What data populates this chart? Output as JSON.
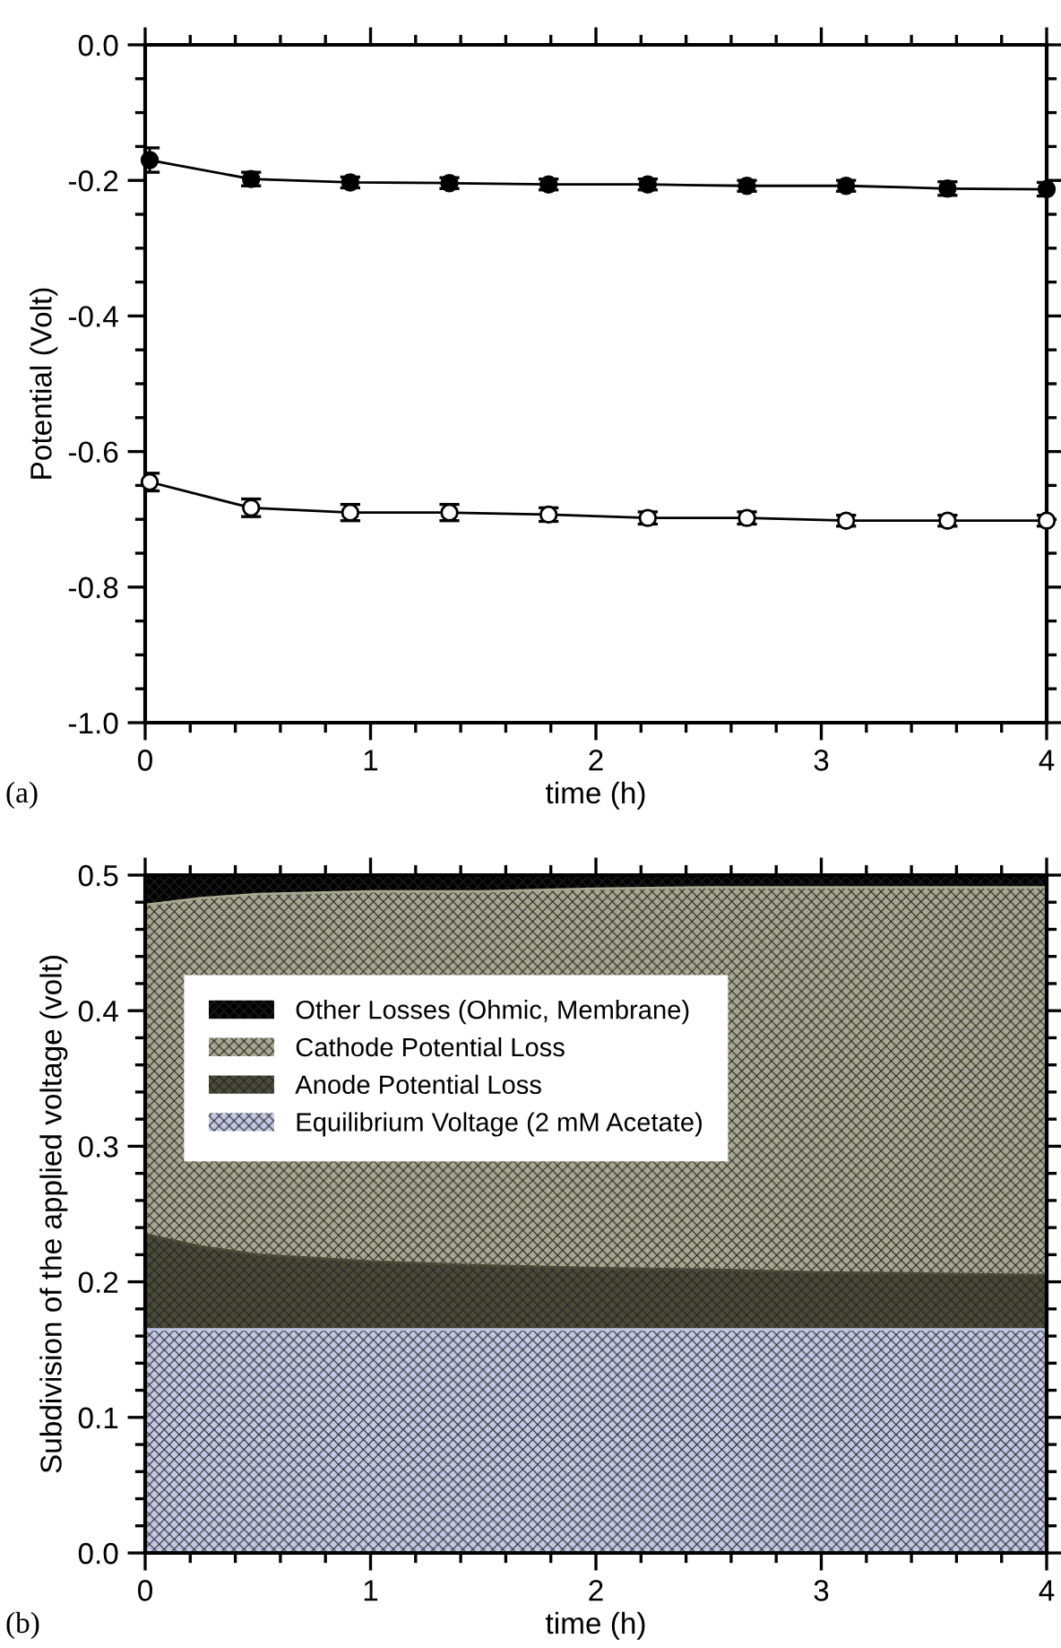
{
  "chart_data": [
    {
      "type": "line",
      "xlabel": "time (h)",
      "ylabel": "Potential (Volt)",
      "annotations": [
        "(a)"
      ],
      "xlim": [
        0,
        4
      ],
      "xticks": [
        0,
        1,
        2,
        3,
        4
      ],
      "ylim": [
        -1.0,
        0.0
      ],
      "yticks": [
        {
          "value": -1.0,
          "label": "-1.0"
        },
        {
          "value": -0.8,
          "label": "-0.8"
        },
        {
          "value": -0.6,
          "label": "-0.6"
        },
        {
          "value": -0.4,
          "label": "-0.4"
        },
        {
          "value": -0.2,
          "label": "-0.2"
        },
        {
          "value": 0.0,
          "label": "0.0"
        }
      ],
      "grid": false,
      "line_style": "solid",
      "x": [
        0.02,
        0.47,
        0.91,
        1.35,
        1.79,
        2.23,
        2.67,
        3.11,
        3.56,
        4.0
      ],
      "series": [
        {
          "color": "#000000",
          "marker": "circle",
          "values": [
            -0.17,
            -0.198,
            -0.203,
            -0.204,
            -0.206,
            -0.206,
            -0.208,
            -0.208,
            -0.212,
            -0.213
          ],
          "errors": [
            0.018,
            0.01,
            0.008,
            0.008,
            0.008,
            0.008,
            0.008,
            0.008,
            0.01,
            0.01
          ]
        },
        {
          "color": "#ffffff",
          "marker": "circle",
          "values": [
            -0.645,
            -0.683,
            -0.69,
            -0.69,
            -0.693,
            -0.698,
            -0.698,
            -0.702,
            -0.702,
            -0.702
          ],
          "errors": [
            0.013,
            0.013,
            0.012,
            0.012,
            0.01,
            0.009,
            0.009,
            0.008,
            0.008,
            0.008
          ]
        }
      ]
    },
    {
      "type": "area",
      "stacked": true,
      "xlabel": "time (h)",
      "ylabel": "Subdivision of the applied voltage (volt)",
      "annotations": [
        "(b)"
      ],
      "xlim": [
        0,
        4
      ],
      "xticks": [
        0,
        1,
        2,
        3,
        4
      ],
      "ylim": [
        0.0,
        0.5
      ],
      "yticks": [
        {
          "value": 0.0,
          "label": "0.0"
        },
        {
          "value": 0.1,
          "label": "0.1"
        },
        {
          "value": 0.2,
          "label": "0.2"
        },
        {
          "value": 0.3,
          "label": "0.3"
        },
        {
          "value": 0.4,
          "label": "0.4"
        },
        {
          "value": 0.5,
          "label": "0.5"
        }
      ],
      "grid": false,
      "legend": "top left",
      "x": [
        0,
        0.25,
        0.5,
        1,
        1.5,
        2,
        2.5,
        3,
        3.5,
        4
      ],
      "series": [
        {
          "name": "Equilibrium Voltage (2 mM Acetate)",
          "color": "#c4c8e4",
          "values": [
            0.165,
            0.165,
            0.165,
            0.165,
            0.165,
            0.165,
            0.165,
            0.165,
            0.165,
            0.165
          ]
        },
        {
          "name": "Anode Potential Loss",
          "color": "#4a4a38",
          "values": [
            0.07,
            0.061,
            0.055,
            0.05,
            0.047,
            0.045,
            0.044,
            0.042,
            0.041,
            0.04
          ]
        },
        {
          "name": "Cathode Potential Loss",
          "color": "#a8a890",
          "values": [
            0.243,
            0.257,
            0.266,
            0.273,
            0.276,
            0.28,
            0.282,
            0.284,
            0.285,
            0.286
          ]
        },
        {
          "name": "Other Losses (Ohmic, Membrane)",
          "color": "#000000",
          "values": [
            0.022,
            0.017,
            0.014,
            0.012,
            0.012,
            0.01,
            0.009,
            0.009,
            0.009,
            0.009
          ]
        }
      ]
    }
  ]
}
